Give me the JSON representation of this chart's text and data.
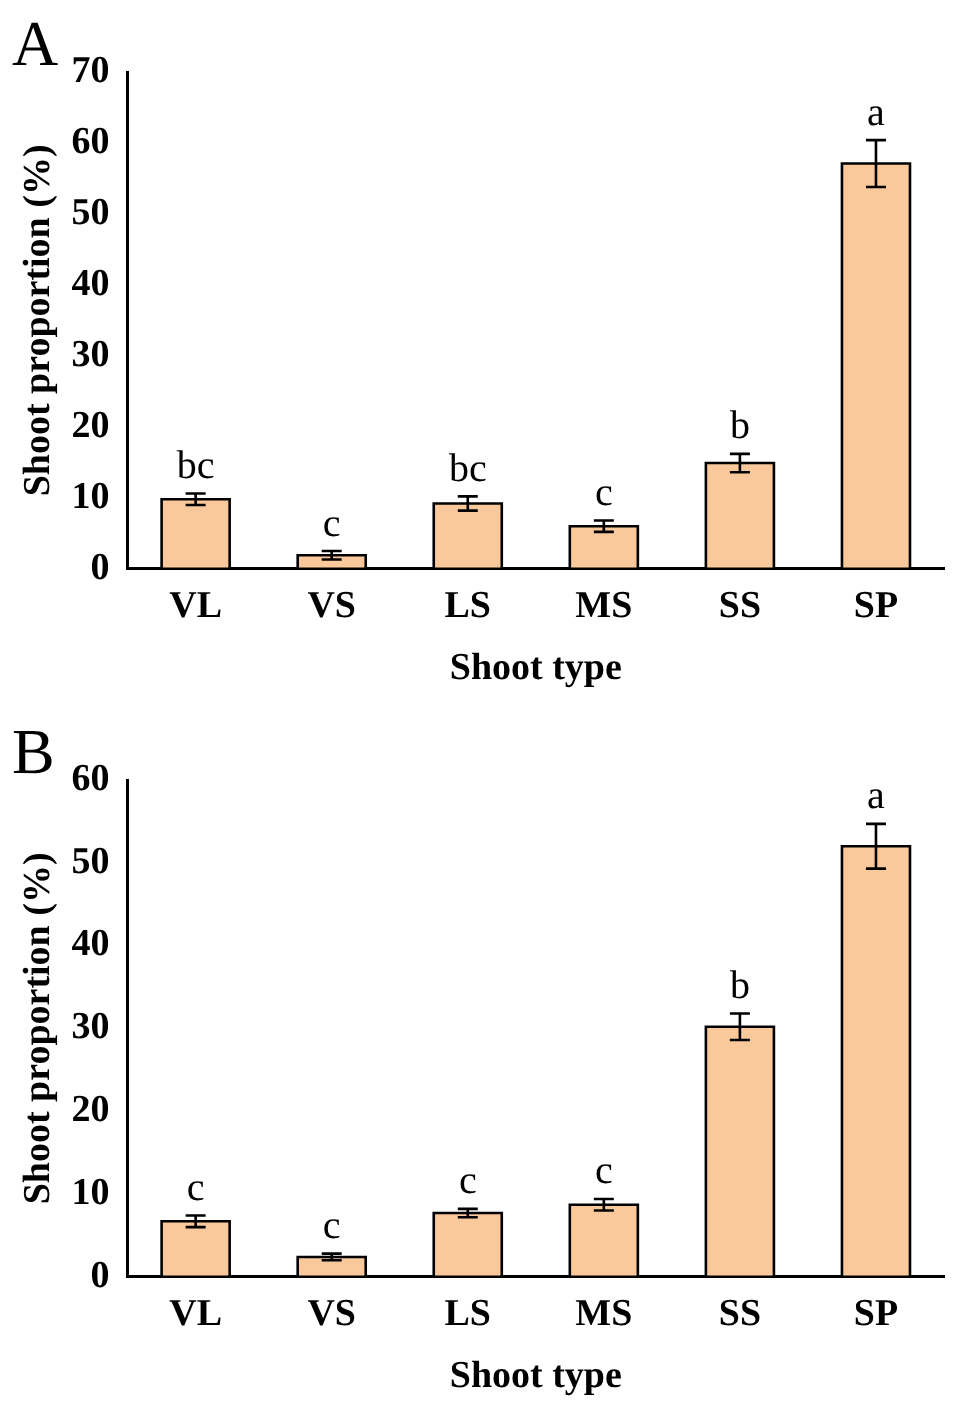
{
  "chart_data": [
    {
      "type": "bar",
      "title": "A",
      "xlabel": "Shoot type",
      "ylabel": "Shoot proportion (%)",
      "categories": [
        "VL",
        "VS",
        "LS",
        "MS",
        "SS",
        "SP"
      ],
      "values": [
        9.8,
        1.9,
        9.2,
        6.0,
        14.9,
        57.1
      ],
      "errors": [
        0.8,
        0.6,
        1.0,
        0.8,
        1.3,
        3.3
      ],
      "color": "#f9c89b",
      "ylim": [
        0,
        70
      ],
      "yticks": [
        0,
        10,
        20,
        30,
        40,
        50,
        60,
        70
      ],
      "grid": false,
      "legend": false,
      "annotations": [
        {
          "text": "bc",
          "x": "VL",
          "y": 10.6
        },
        {
          "text": "c",
          "x": "VS",
          "y": 2.5
        },
        {
          "text": "bc",
          "x": "LS",
          "y": 10.2
        },
        {
          "text": "c",
          "x": "MS",
          "y": 6.8
        },
        {
          "text": "b",
          "x": "SS",
          "y": 16.2
        },
        {
          "text": "a",
          "x": "SP",
          "y": 60.4
        }
      ]
    },
    {
      "type": "bar",
      "title": "B",
      "xlabel": "Shoot type",
      "ylabel": "Shoot proportion (%)",
      "categories": [
        "VL",
        "VS",
        "LS",
        "MS",
        "SS",
        "SP"
      ],
      "values": [
        6.7,
        2.4,
        7.7,
        8.7,
        30.2,
        52.0
      ],
      "errors": [
        0.7,
        0.4,
        0.5,
        0.7,
        1.6,
        2.7
      ],
      "color": "#f9c89b",
      "ylim": [
        0,
        60
      ],
      "yticks": [
        0,
        10,
        20,
        30,
        40,
        50,
        60
      ],
      "grid": false,
      "legend": false,
      "annotations": [
        {
          "text": "c",
          "x": "VL",
          "y": 7.4
        },
        {
          "text": "c",
          "x": "VS",
          "y": 2.8
        },
        {
          "text": "c",
          "x": "LS",
          "y": 8.2
        },
        {
          "text": "c",
          "x": "MS",
          "y": 9.4
        },
        {
          "text": "b",
          "x": "SS",
          "y": 31.8
        },
        {
          "text": "a",
          "x": "SP",
          "y": 54.7
        }
      ]
    }
  ]
}
